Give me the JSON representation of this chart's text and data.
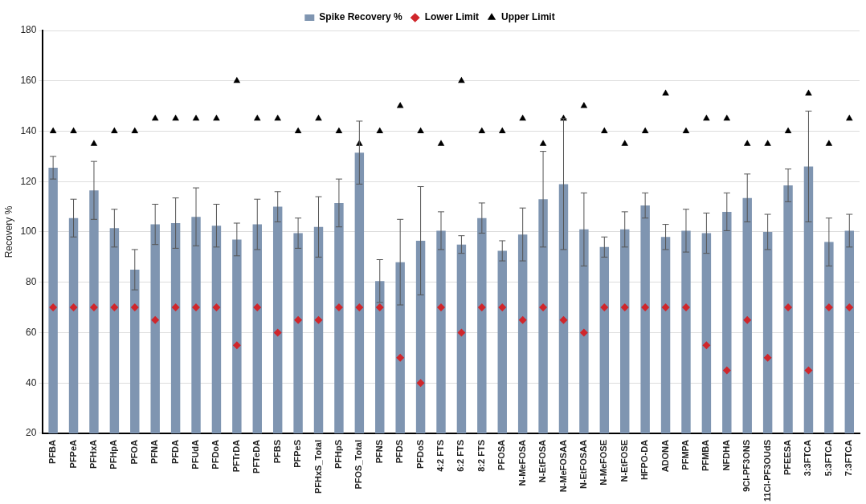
{
  "chart_data": {
    "type": "bar",
    "ylabel": "Recovery %",
    "categories": [
      "PFBA",
      "PFPeA",
      "PFHxA",
      "PFHpA",
      "PFOA",
      "PFNA",
      "PFDA",
      "PFUdA",
      "PFDoA",
      "PFTrDA",
      "PFTeDA",
      "PFBS",
      "PFPeS",
      "PFHxS_Total",
      "PFHpS",
      "PFOS_Total",
      "PFNS",
      "PFDS",
      "PFDoS",
      "4:2 FTS",
      "6:2 FTS",
      "8:2 FTS",
      "PFOSA",
      "N-MeFOSA",
      "N-EtFOSA",
      "N-MeFOSAA",
      "N-EtFOSAA",
      "N-MeFOSE",
      "N-EtFOSE",
      "HFPO-DA",
      "ADONA",
      "PFMPA",
      "PFMBA",
      "NFDHA",
      "9Cl-PF3ONS",
      "11Cl-PF3OUdS",
      "PFEESA",
      "3:3FTCA",
      "5:3FTCA",
      "7:3FTCA"
    ],
    "series": [
      {
        "name": "Spike Recovery %",
        "color": "#7f95b1",
        "values": [
          125.5,
          105.5,
          116.5,
          101.5,
          85,
          103,
          103.5,
          106,
          102.5,
          97,
          103,
          110,
          99.5,
          102,
          111.5,
          131.5,
          80.5,
          88,
          96.5,
          100.5,
          95,
          105.5,
          92.5,
          99,
          113,
          119,
          101,
          94,
          101,
          110.5,
          98,
          100.5,
          99.5,
          108,
          113.5,
          100,
          118.5,
          126,
          96,
          100.5
        ],
        "errors": [
          4.5,
          7.5,
          11.5,
          7.5,
          8,
          8,
          10,
          11.5,
          8.5,
          6.5,
          10,
          6,
          6,
          12,
          9.5,
          12.5,
          8.5,
          17,
          21.5,
          7.5,
          3.5,
          6,
          4,
          10.5,
          19,
          26,
          14.5,
          4,
          7,
          5,
          5,
          8.5,
          8,
          7.5,
          9.5,
          7,
          6.5,
          22,
          9.5,
          6.5
        ]
      },
      {
        "name": "Lower Limit",
        "type": "scatter",
        "marker": "diamond",
        "color": "#d0262b",
        "x": [
          "PFBA",
          "PFPeA",
          "PFHxA",
          "PFHpA",
          "PFOA",
          "PFNA",
          "PFDA",
          "PFUdA",
          "PFDoA",
          "PFTrDA",
          "PFTeDA",
          "PFBS",
          "PFPeS",
          "PFHxS_Total",
          "PFHpS",
          "PFOS_Total",
          "PFNS",
          "PFDS",
          "PFDoS",
          "4:2 FTS",
          "6:2 FTS",
          "8:2 FTS",
          "PFOSA",
          "N-MeFOSA",
          "N-EtFOSA",
          "N-MeFOSAA",
          "N-EtFOSAA",
          "N-MeFOSE",
          "N-EtFOSE",
          "HFPO-DA",
          "ADONA",
          "PFMPA",
          "PFMBA",
          "NFDHA",
          "9Cl-PF3ONS",
          "11Cl-PF3OUdS",
          "PFEESA",
          "3:3FTCA",
          "5:3FTCA",
          "7:3FTCA"
        ],
        "values": [
          70,
          70,
          70,
          70,
          70,
          65,
          70,
          70,
          70,
          55,
          70,
          60,
          65,
          65,
          70,
          70,
          70,
          50,
          40,
          70,
          60,
          70,
          70,
          65,
          70,
          65,
          60,
          70,
          70,
          70,
          70,
          70,
          55,
          45,
          65,
          50,
          70,
          45,
          70,
          70
        ]
      },
      {
        "name": "Upper Limit",
        "type": "scatter",
        "marker": "triangle",
        "color": "#000000",
        "x": [
          "PFBA",
          "PFPeA",
          "PFHxA",
          "PFHpA",
          "PFOA",
          "PFNA",
          "PFDA",
          "PFUdA",
          "PFDoA",
          "PFTrDA",
          "PFTeDA",
          "PFBS",
          "PFPeS",
          "PFHxS_Total",
          "PFHpS",
          "PFOS_Total",
          "PFNS",
          "PFDS",
          "PFDoS",
          "4:2 FTS",
          "6:2 FTS",
          "8:2 FTS",
          "PFOSA",
          "N-MeFOSA",
          "N-EtFOSA",
          "N-MeFOSAA",
          "N-EtFOSAA",
          "N-MeFOSE",
          "N-EtFOSE",
          "HFPO-DA",
          "ADONA",
          "PFMPA",
          "PFMBA",
          "NFDHA",
          "9Cl-PF3ONS",
          "11Cl-PF3OUdS",
          "PFEESA",
          "3:3FTCA",
          "5:3FTCA",
          "7:3FTCA"
        ],
        "values": [
          140,
          140,
          135,
          140,
          140,
          145,
          145,
          145,
          145,
          160,
          145,
          145,
          140,
          145,
          140,
          135,
          140,
          150,
          140,
          135,
          160,
          140,
          140,
          145,
          135,
          145,
          150,
          140,
          135,
          140,
          155,
          140,
          145,
          145,
          135,
          135,
          140,
          155,
          135,
          145
        ]
      }
    ],
    "ylim": [
      20,
      180
    ],
    "yticks": [
      20,
      40,
      60,
      80,
      100,
      120,
      140,
      160,
      180
    ],
    "grid": "y",
    "legend": "top"
  }
}
